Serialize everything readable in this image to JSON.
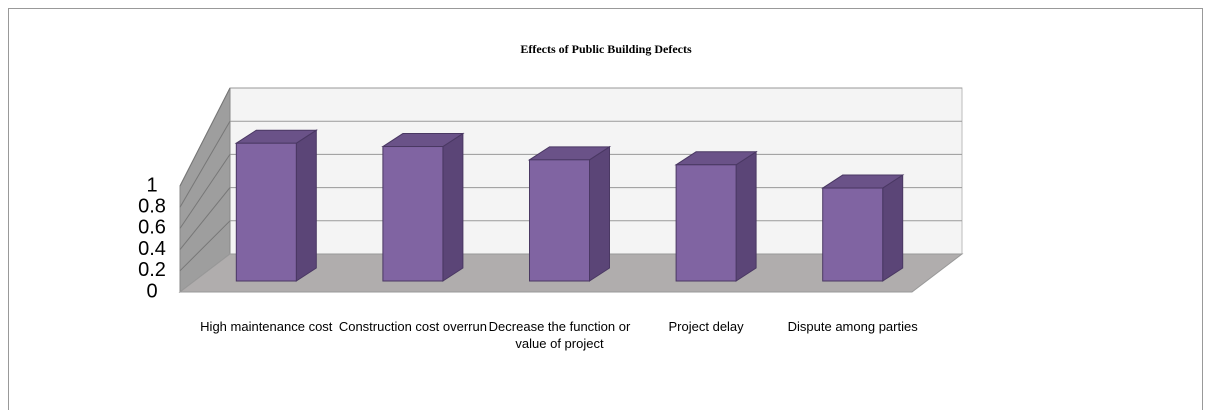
{
  "chart_data": {
    "type": "bar3d",
    "title": "Effects of  Public Building Defects",
    "categories": [
      "High maintenance cost",
      "Construction cost overrun",
      "Decrease the function or value of project",
      "Project delay",
      "Dispute among parties"
    ],
    "values": [
      0.83,
      0.81,
      0.73,
      0.7,
      0.56
    ],
    "color": "#8064a2",
    "ylim": [
      0,
      1
    ],
    "yticks": [
      0,
      0.2,
      0.4,
      0.6,
      0.8,
      1
    ],
    "grid": true
  }
}
